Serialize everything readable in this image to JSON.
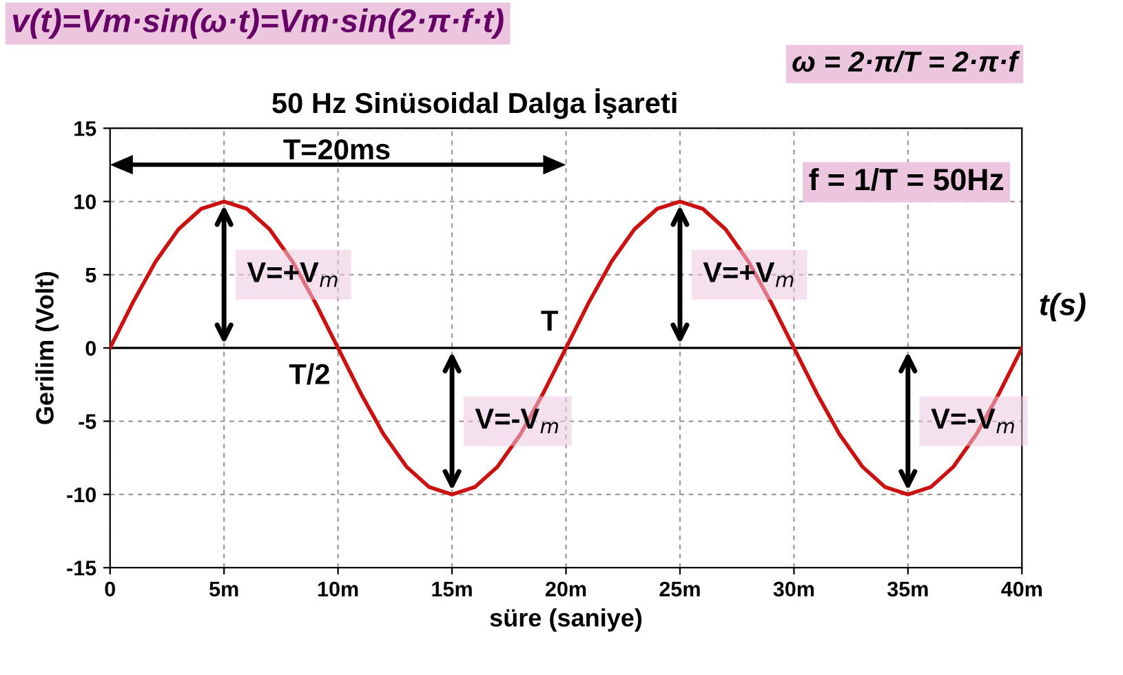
{
  "chart_data": {
    "type": "line",
    "title": "50 Hz Sinüsoidal Dalga İşareti",
    "xlabel": "süre (saniye)",
    "ylabel": "Gerilim (Volt)",
    "x": [
      0,
      1,
      2,
      3,
      4,
      5,
      6,
      7,
      8,
      9,
      10,
      11,
      12,
      13,
      14,
      15,
      16,
      17,
      18,
      19,
      20,
      21,
      22,
      23,
      24,
      25,
      26,
      27,
      28,
      29,
      30,
      31,
      32,
      33,
      34,
      35,
      36,
      37,
      38,
      39,
      40
    ],
    "series": [
      {
        "color": "#cc1111",
        "values": [
          0,
          3.1,
          5.9,
          8.1,
          9.5,
          10,
          9.5,
          8.1,
          5.9,
          3.1,
          0,
          -3.1,
          -5.9,
          -8.1,
          -9.5,
          -10,
          -9.5,
          -8.1,
          -5.9,
          -3.1,
          0,
          3.1,
          5.9,
          8.1,
          9.5,
          10,
          9.5,
          8.1,
          5.9,
          3.1,
          0,
          -3.1,
          -5.9,
          -8.1,
          -9.5,
          -10,
          -9.5,
          -8.1,
          -5.9,
          -3.1,
          0
        ]
      }
    ],
    "xlim": [
      0,
      40
    ],
    "ylim": [
      -15,
      15
    ],
    "xticks": [
      0,
      {
        "value": 5,
        "label": "5m"
      },
      {
        "value": 10,
        "label": "10m"
      },
      {
        "value": 15,
        "label": "15m"
      },
      {
        "value": 20,
        "label": "20m"
      },
      {
        "value": 25,
        "label": "25m"
      },
      {
        "value": 30,
        "label": "30m"
      },
      {
        "value": 35,
        "label": "35m"
      },
      {
        "value": 40,
        "label": "40m"
      }
    ],
    "yticks": [
      -15,
      -10,
      -5,
      0,
      5,
      10,
      15
    ],
    "grid": true,
    "marker": "none",
    "line_style": "solid",
    "annotations": [
      "v(t)=Vm·sin(ω·t)=Vm·sin(2·π·f·t)",
      "ω = 2·π/T = 2·π·f",
      "f = 1/T = 50Hz",
      "t(s)",
      "T=20ms",
      {
        "text": "V=+V$_{m}$",
        "x": 5,
        "y": 10
      },
      {
        "text": "V=-V$_{m}$",
        "x": 15,
        "y": -10
      },
      {
        "text": "V=+V$_{m}$",
        "x": 25,
        "y": 10
      },
      {
        "text": "V=-V$_{m}$",
        "x": 35,
        "y": -10
      },
      {
        "text": "T",
        "x": 20,
        "y": 0
      },
      {
        "text": "T/2",
        "x": 10,
        "y": 0
      }
    ]
  }
}
